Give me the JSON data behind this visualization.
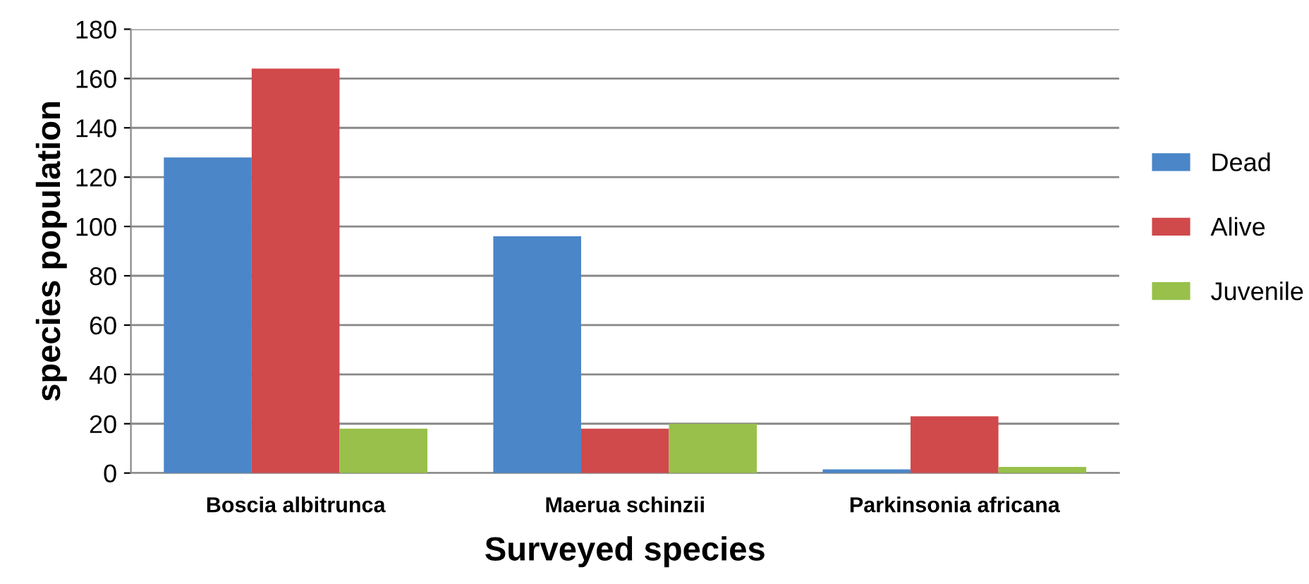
{
  "chart_data": {
    "type": "bar",
    "xlabel": "Surveyed species",
    "ylabel": "species population",
    "categories": [
      "Boscia albitrunca",
      "Maerua schinzii",
      "Parkinsonia africana"
    ],
    "series": [
      {
        "name": "Dead",
        "color": "#4a86c8",
        "values": [
          128,
          96,
          1.5
        ]
      },
      {
        "name": "Alive",
        "color": "#d0494b",
        "values": [
          164,
          18,
          23
        ]
      },
      {
        "name": "Juvenile",
        "color": "#98c04a",
        "values": [
          18,
          20,
          2.5
        ]
      }
    ],
    "ylim": [
      0,
      180
    ],
    "yticks": [
      0,
      20,
      40,
      60,
      80,
      100,
      120,
      140,
      160,
      180
    ],
    "grid": "y",
    "legend": "right"
  }
}
